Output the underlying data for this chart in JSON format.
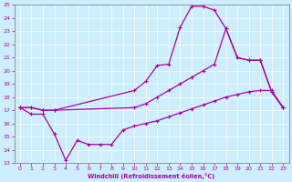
{
  "xlabel": "Windchill (Refroidissement éolien,°C)",
  "bg_color": "#cceeff",
  "line_color": "#aa00aa",
  "xlim": [
    -0.5,
    23.5
  ],
  "ylim": [
    13,
    25
  ],
  "xticks": [
    0,
    1,
    2,
    3,
    4,
    5,
    6,
    7,
    8,
    9,
    10,
    11,
    12,
    13,
    14,
    15,
    16,
    17,
    18,
    19,
    20,
    21,
    22,
    23
  ],
  "yticks": [
    13,
    14,
    15,
    16,
    17,
    18,
    19,
    20,
    21,
    22,
    23,
    24,
    25
  ],
  "line_upper_x": [
    0,
    1,
    2,
    3,
    10,
    11,
    12,
    13,
    14,
    15,
    16,
    17,
    18,
    19,
    20,
    21,
    22,
    23
  ],
  "line_upper_y": [
    17.2,
    17.2,
    17.0,
    17.0,
    18.5,
    19.2,
    20.4,
    20.5,
    23.3,
    24.9,
    24.9,
    24.6,
    23.2,
    21.0,
    20.8,
    20.8,
    18.4,
    17.2
  ],
  "line_mid_x": [
    0,
    1,
    2,
    3,
    10,
    11,
    12,
    13,
    14,
    15,
    16,
    17,
    18,
    19,
    20,
    21,
    22,
    23
  ],
  "line_mid_y": [
    17.2,
    17.2,
    17.0,
    17.0,
    17.2,
    17.5,
    18.0,
    18.5,
    19.0,
    19.5,
    20.0,
    20.5,
    23.2,
    21.0,
    20.8,
    20.8,
    18.4,
    17.2
  ],
  "line_lower_x": [
    0,
    1,
    2,
    3,
    4,
    5,
    6,
    7,
    8,
    9,
    10,
    11,
    12,
    13,
    14,
    15,
    16,
    17,
    18,
    19,
    20,
    21,
    22,
    23
  ],
  "line_lower_y": [
    17.2,
    16.7,
    16.7,
    15.2,
    13.2,
    14.7,
    14.4,
    14.4,
    14.4,
    15.5,
    15.8,
    16.0,
    16.2,
    16.5,
    16.8,
    17.1,
    17.4,
    17.7,
    18.0,
    18.2,
    18.4,
    18.5,
    18.5,
    17.2
  ]
}
